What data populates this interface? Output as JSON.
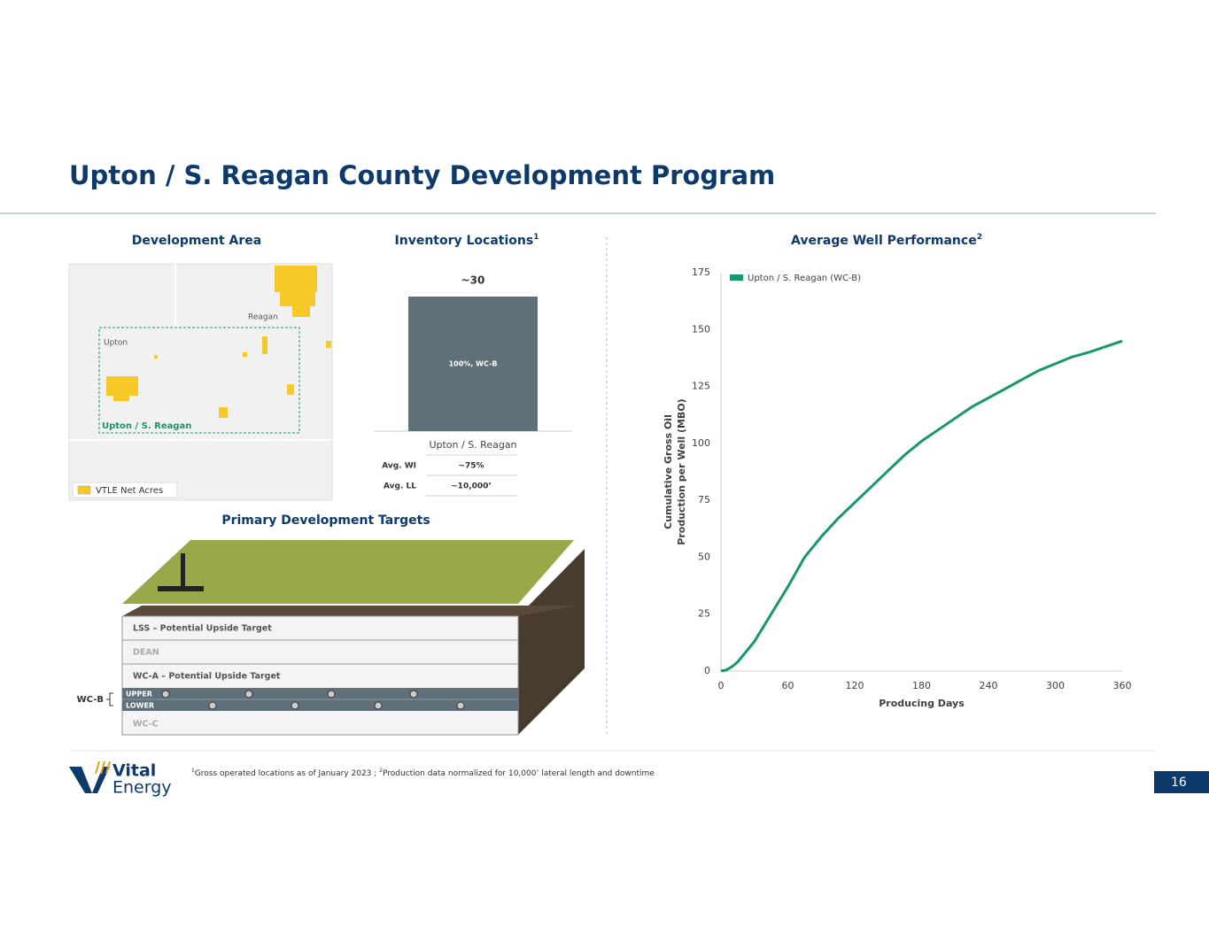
{
  "title": "Upton / S. Reagan County Development Program",
  "development_area": {
    "title": "Development Area",
    "county_labels": [
      "Reagan",
      "Upton"
    ],
    "area_label": "Upton / S. Reagan",
    "legend": "VTLE Net Acres"
  },
  "inventory": {
    "title": "Inventory Locations",
    "title_sup": "1",
    "table": {
      "rows": [
        [
          "Avg. WI",
          "~75%"
        ],
        [
          "Avg. LL",
          "~10,000’"
        ]
      ]
    }
  },
  "performance": {
    "title": "Average Well Performance",
    "title_sup": "2"
  },
  "targets": {
    "title": "Primary Development Targets",
    "layers": [
      "LSS – Potential Upside Target",
      "DEAN",
      "WC-A – Potential Upside Target",
      "UPPER",
      "LOWER",
      "WC-C"
    ],
    "bracket_label": "WC-B"
  },
  "footnote": {
    "sup1": "1",
    "text1": "Gross operated locations as of January 2023 ; ",
    "sup2": "2",
    "text2": "Production data normalized for 10,000’ lateral length and downtime"
  },
  "logo": [
    "Vital",
    "Energy"
  ],
  "page_number": "16",
  "chart_data": [
    {
      "type": "bar",
      "categories": [
        "Upton / S. Reagan"
      ],
      "values": [
        30
      ],
      "value_labels": [
        "~30"
      ],
      "segment_labels": [
        "100%, WC-B"
      ],
      "color": "#5f707a"
    },
    {
      "type": "line",
      "x": [
        0,
        5,
        10,
        15,
        20,
        30,
        45,
        60,
        75,
        90,
        105,
        120,
        135,
        150,
        165,
        180,
        195,
        210,
        225,
        240,
        255,
        270,
        285,
        300,
        315,
        330,
        345,
        360
      ],
      "series": [
        {
          "name": "Upton / S. Reagan (WC-B)",
          "color": "#17966f",
          "values": [
            0,
            0.5,
            2,
            4,
            7,
            13,
            25,
            37,
            50,
            59,
            67,
            74,
            81,
            88,
            95,
            101,
            106,
            111,
            116,
            120,
            124,
            128,
            132,
            135,
            138,
            140,
            142.5,
            145
          ]
        }
      ],
      "xlabel": "Producing Days",
      "ylabel": [
        "Cumulative Gross Oil",
        "Production per Well (MBO)"
      ],
      "xlim": [
        0,
        360
      ],
      "xticks": [
        0,
        60,
        120,
        180,
        240,
        300,
        360
      ],
      "ylim": [
        0,
        175
      ],
      "yticks": [
        0,
        25,
        50,
        75,
        100,
        125,
        150,
        175
      ],
      "legend": "upper left"
    }
  ]
}
